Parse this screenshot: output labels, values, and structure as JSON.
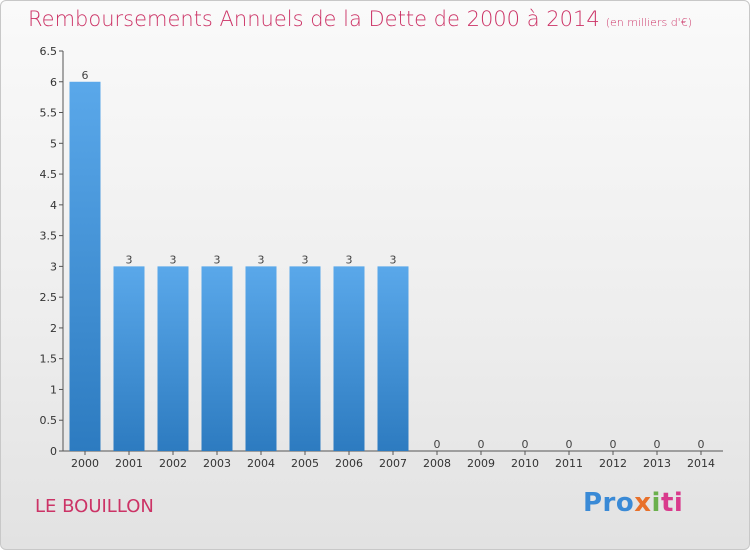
{
  "title": "Remboursements Annuels de la Dette de 2000 à 2014",
  "subtitle": "(en milliers d'€)",
  "commune": "LE BOUILLON",
  "logo": {
    "p1": "Pro",
    "p2": "x",
    "p3": "i",
    "p4": "ti"
  },
  "colors": {
    "bar": "#3d8fd6",
    "title": "#cc3366"
  },
  "chart_data": {
    "type": "bar",
    "categories": [
      "2000",
      "2001",
      "2002",
      "2003",
      "2004",
      "2005",
      "2006",
      "2007",
      "2008",
      "2009",
      "2010",
      "2011",
      "2012",
      "2013",
      "2014"
    ],
    "values": [
      6,
      3,
      3,
      3,
      3,
      3,
      3,
      3,
      0,
      0,
      0,
      0,
      0,
      0,
      0
    ],
    "data_labels": [
      "6",
      "3",
      "3",
      "3",
      "3",
      "3",
      "3",
      "3",
      "0",
      "0",
      "0",
      "0",
      "0",
      "0",
      "0"
    ],
    "yticks": [
      "0",
      "0.5",
      "1",
      "1.5",
      "2",
      "2.5",
      "3",
      "3.5",
      "4",
      "4.5",
      "5",
      "5.5",
      "6",
      "6.5"
    ],
    "ylim": [
      0,
      6.5
    ],
    "grid": false
  }
}
